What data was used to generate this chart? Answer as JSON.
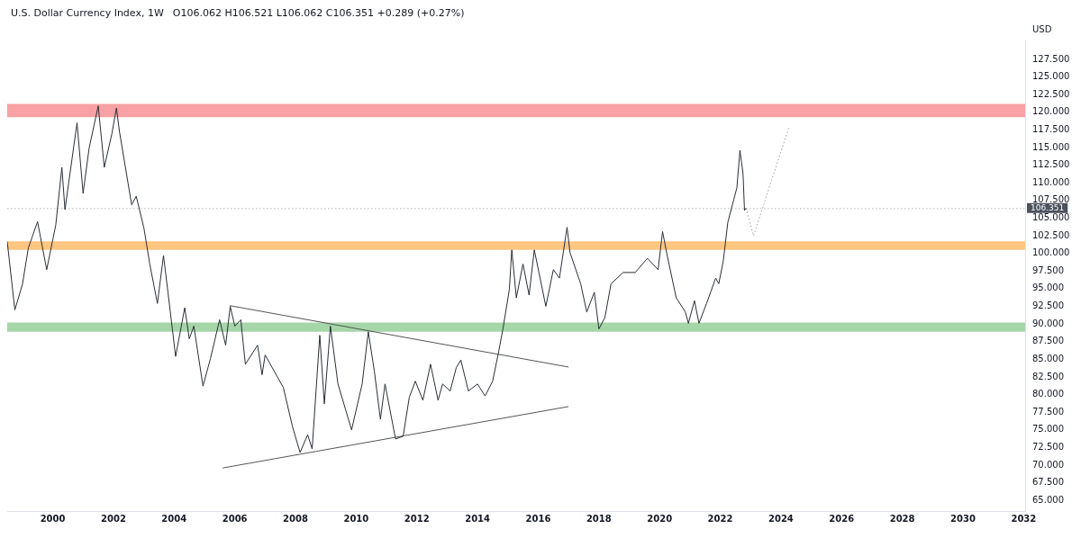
{
  "chart_data": {
    "type": "line",
    "title": "U.S. Dollar Currency Index, 1W",
    "subtitle": "O106.062 H106.521 L106.062 C106.351 +0.289 (+0.27%)",
    "ylabel": "USD",
    "marker": "none",
    "xlim": [
      "1998-07-02",
      "2032-01-19"
    ],
    "xticks": [
      "2000",
      "2002",
      "2004",
      "2006",
      "2008",
      "2010",
      "2012",
      "2014",
      "2016",
      "2018",
      "2020",
      "2022",
      "2024",
      "2026",
      "2028",
      "2030",
      "2032"
    ],
    "ylim": [
      63.5,
      130.3
    ],
    "yticks": [
      {
        "value": 65,
        "label": "65.000"
      },
      {
        "value": 67.5,
        "label": "67.500"
      },
      {
        "value": 70,
        "label": "70.000"
      },
      {
        "value": 72.5,
        "label": "72.500"
      },
      {
        "value": 75,
        "label": "75.000"
      },
      {
        "value": 77.5,
        "label": "77.500"
      },
      {
        "value": 80,
        "label": "80.000"
      },
      {
        "value": 82.5,
        "label": "82.500"
      },
      {
        "value": 85,
        "label": "85.000"
      },
      {
        "value": 87.5,
        "label": "87.500"
      },
      {
        "value": 90,
        "label": "90.000"
      },
      {
        "value": 92.5,
        "label": "92.500"
      },
      {
        "value": 95,
        "label": "95.000"
      },
      {
        "value": 97.5,
        "label": "97.500"
      },
      {
        "value": 100,
        "label": "100.000"
      },
      {
        "value": 102.5,
        "label": "102.500"
      },
      {
        "value": 105,
        "label": "105.000"
      },
      {
        "value": 107.5,
        "label": "107.500"
      },
      {
        "value": 110,
        "label": "110.000"
      },
      {
        "value": 112.5,
        "label": "112.500"
      },
      {
        "value": 115,
        "label": "115.000"
      },
      {
        "value": 117.5,
        "label": "117.500"
      },
      {
        "value": 120,
        "label": "120.000"
      },
      {
        "value": 122.5,
        "label": "122.500"
      },
      {
        "value": 125,
        "label": "125.000"
      },
      {
        "value": 127.5,
        "label": "127.500"
      }
    ],
    "bands": [
      {
        "axis": "y",
        "from": 119.3,
        "to": 121.2,
        "color": "#f7a1a4"
      },
      {
        "axis": "y",
        "from": 100.5,
        "to": 101.7,
        "color": "#fec680"
      },
      {
        "axis": "y",
        "from": 88.9,
        "to": 90.2,
        "color": "#a5d6a7"
      }
    ],
    "ref_lines": [
      {
        "axis": "y",
        "value": 106.351,
        "label": "106.351",
        "color": "#b2b5be",
        "line_style": "dotted"
      }
    ],
    "series": [
      {
        "color": "#2a2e39",
        "x": [
          "1998-07-02",
          "1998-10-02",
          "1999-01-01",
          "1999-03-14",
          "1999-07-02",
          "1999-10-20",
          "2000-02-06",
          "2000-04-20",
          "2000-05-27",
          "2000-10-20",
          "2001-01-01",
          "2001-03-14",
          "2001-07-02",
          "2001-09-13",
          "2001-12-14",
          "2002-02-06",
          "2002-03-14",
          "2002-08-08",
          "2002-10-02",
          "2003-01-01",
          "2003-03-14",
          "2003-06-14",
          "2003-08-26",
          "2003-10-20",
          "2004-01-19",
          "2004-05-08",
          "2004-07-02",
          "2004-08-26",
          "2004-12-14",
          "2005-03-14",
          "2005-07-02",
          "2005-09-13",
          "2005-11-07",
          "2006-01-01",
          "2006-03-14",
          "2006-05-08",
          "2006-10-02",
          "2006-11-25",
          "2007-01-01",
          "2007-08-08",
          "2007-11-25",
          "2008-02-25",
          "2008-05-27",
          "2008-07-20",
          "2008-10-20",
          "2008-12-14",
          "2009-02-25",
          "2009-05-27",
          "2009-11-07",
          "2010-03-14",
          "2010-05-27",
          "2010-08-08",
          "2010-10-20",
          "2010-12-14",
          "2011-04-20",
          "2011-07-20",
          "2011-10-02",
          "2011-12-14",
          "2012-03-14",
          "2012-06-14",
          "2012-09-13",
          "2012-11-07",
          "2013-02-06",
          "2013-04-20",
          "2013-06-14",
          "2013-09-13",
          "2014-01-01",
          "2014-04-02",
          "2014-07-02",
          "2014-09-13",
          "2014-11-07",
          "2015-01-19",
          "2015-02-17",
          "2015-04-13",
          "2015-07-02",
          "2015-09-13",
          "2015-11-15",
          "2016-04-02",
          "2016-07-02",
          "2016-09-13",
          "2016-12-14",
          "2017-01-19",
          "2017-05-27",
          "2017-08-08",
          "2017-11-07",
          "2018-01-01",
          "2018-03-14",
          "2018-05-27",
          "2018-10-20",
          "2019-03-14",
          "2019-08-08",
          "2019-12-14",
          "2020-02-06",
          "2020-04-02",
          "2020-07-20",
          "2020-11-07",
          "2020-12-14",
          "2021-02-25",
          "2021-04-20",
          "2021-07-20",
          "2021-11-07",
          "2021-12-14",
          "2022-02-06",
          "2022-04-02",
          "2022-06-14",
          "2022-07-20",
          "2022-08-26",
          "2022-10-02",
          "2022-10-20",
          "2022-11-07"
        ],
        "values": [
          101.7,
          92.0,
          95.6,
          100.8,
          104.5,
          97.7,
          104.0,
          112.2,
          106.2,
          118.5,
          108.5,
          114.9,
          120.9,
          112.2,
          117.0,
          120.6,
          117.3,
          106.9,
          108.1,
          103.7,
          98.5,
          92.9,
          99.7,
          94.4,
          85.4,
          92.3,
          87.9,
          89.7,
          81.2,
          85.1,
          90.6,
          87.0,
          92.5,
          89.7,
          90.6,
          84.3,
          87.0,
          82.8,
          85.6,
          81.0,
          75.5,
          71.8,
          74.3,
          72.3,
          88.4,
          78.7,
          89.7,
          81.5,
          75.0,
          81.5,
          88.9,
          83.3,
          76.5,
          81.5,
          73.7,
          74.1,
          79.6,
          81.9,
          79.2,
          84.3,
          79.2,
          81.5,
          80.5,
          83.8,
          84.9,
          80.5,
          81.5,
          79.8,
          81.9,
          86.1,
          89.6,
          94.9,
          100.5,
          93.7,
          98.5,
          94.1,
          100.5,
          92.5,
          97.7,
          96.5,
          103.7,
          100.1,
          95.7,
          91.7,
          94.5,
          89.3,
          90.9,
          95.7,
          97.3,
          97.3,
          99.3,
          97.7,
          103.1,
          99.7,
          93.7,
          91.7,
          90.1,
          93.3,
          90.1,
          92.9,
          96.5,
          95.7,
          98.9,
          104.4,
          107.7,
          109.3,
          114.6,
          111.3,
          106.1,
          106.4
        ]
      },
      {
        "color": "#555555",
        "x": [
          "2005-11-03",
          "2017-01-01"
        ],
        "values": [
          92.6,
          83.9
        ]
      },
      {
        "color": "#555555",
        "x": [
          "2005-08-08",
          "2017-01-01"
        ],
        "values": [
          69.6,
          78.3
        ]
      },
      {
        "color": "#9e9e9e",
        "line_style": "dotted",
        "x": [
          "2022-11-07",
          "2023-02-06",
          "2024-04-07"
        ],
        "values": [
          106.4,
          102.5,
          117.9
        ]
      }
    ]
  }
}
